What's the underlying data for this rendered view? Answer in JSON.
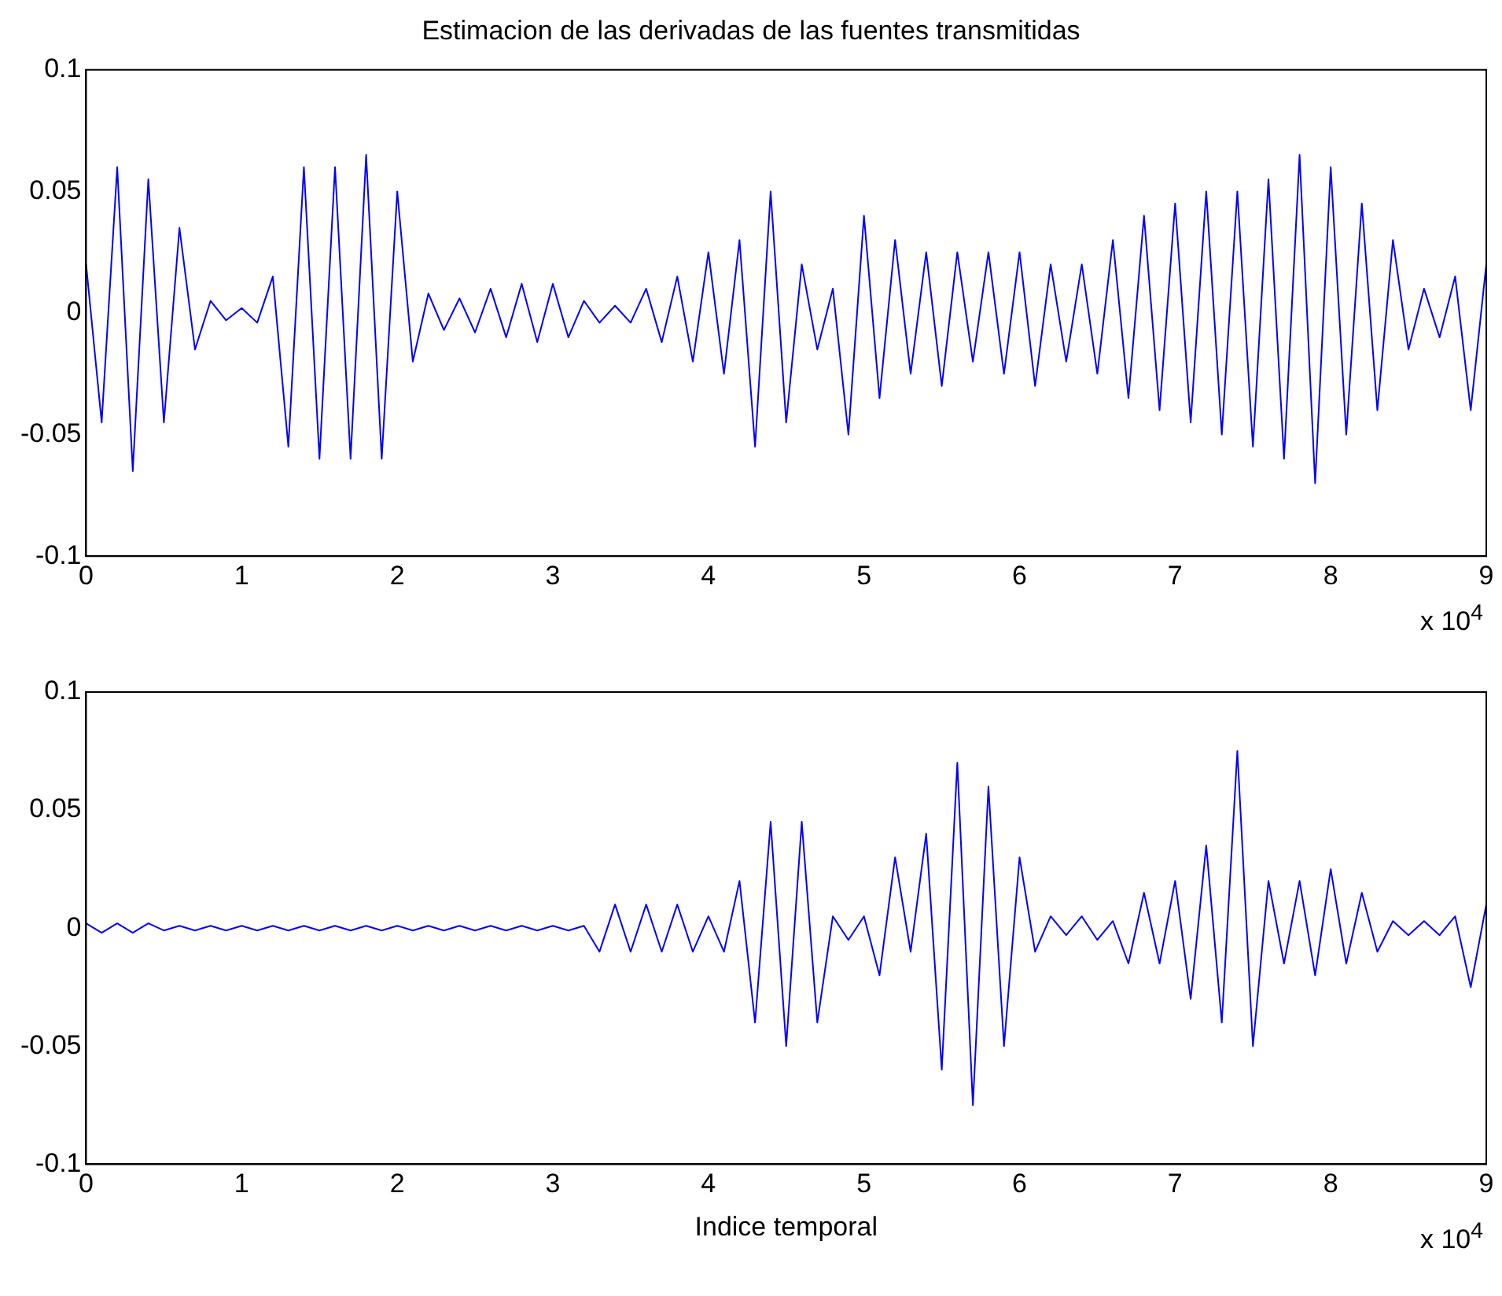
{
  "chart_data": [
    {
      "type": "line",
      "title": "Estimacion de las derivadas de las fuentes transmitidas",
      "annotations": [
        "x 10$^{4}$"
      ],
      "x": [
        0,
        0.1,
        0.2,
        0.3,
        0.4,
        0.5,
        0.6,
        0.7,
        0.8,
        0.9,
        1,
        1.1,
        1.2,
        1.3,
        1.4,
        1.5,
        1.6,
        1.7,
        1.8,
        1.9,
        2,
        2.1,
        2.2,
        2.3,
        2.4,
        2.5,
        2.6,
        2.7,
        2.8,
        2.9,
        3,
        3.1,
        3.2,
        3.3,
        3.4,
        3.5,
        3.6,
        3.7,
        3.8,
        3.9,
        4,
        4.1,
        4.2,
        4.3,
        4.4,
        4.5,
        4.6,
        4.7,
        4.8,
        4.9,
        5,
        5.1,
        5.2,
        5.3,
        5.4,
        5.5,
        5.6,
        5.7,
        5.8,
        5.9,
        6,
        6.1,
        6.2,
        6.3,
        6.4,
        6.5,
        6.6,
        6.7,
        6.8,
        6.9,
        7,
        7.1,
        7.2,
        7.3,
        7.4,
        7.5,
        7.6,
        7.7,
        7.8,
        7.9,
        8,
        8.1,
        8.2,
        8.3,
        8.4,
        8.5,
        8.6,
        8.7,
        8.8,
        8.9,
        9
      ],
      "series": [
        {
          "color": "#0000ff",
          "values": [
            0.02,
            -0.045,
            0.06,
            -0.065,
            0.055,
            -0.045,
            0.035,
            -0.015,
            0.005,
            -0.003,
            0.002,
            -0.004,
            0.015,
            -0.055,
            0.06,
            -0.06,
            0.06,
            -0.06,
            0.065,
            -0.06,
            0.05,
            -0.02,
            0.008,
            -0.007,
            0.006,
            -0.008,
            0.01,
            -0.01,
            0.012,
            -0.012,
            0.012,
            -0.01,
            0.005,
            -0.004,
            0.003,
            -0.004,
            0.01,
            -0.012,
            0.015,
            -0.02,
            0.025,
            -0.025,
            0.03,
            -0.055,
            0.05,
            -0.045,
            0.02,
            -0.015,
            0.01,
            -0.05,
            0.04,
            -0.035,
            0.03,
            -0.025,
            0.025,
            -0.03,
            0.025,
            -0.02,
            0.025,
            -0.025,
            0.025,
            -0.03,
            0.02,
            -0.02,
            0.02,
            -0.025,
            0.03,
            -0.035,
            0.04,
            -0.04,
            0.045,
            -0.045,
            0.05,
            -0.05,
            0.05,
            -0.055,
            0.055,
            -0.06,
            0.065,
            -0.07,
            0.06,
            -0.05,
            0.045,
            -0.04,
            0.03,
            -0.015,
            0.01,
            -0.01,
            0.015,
            -0.04,
            0.02
          ]
        }
      ],
      "xlim": [
        0,
        9
      ],
      "xticks": [
        0,
        1,
        2,
        3,
        4,
        5,
        6,
        7,
        8,
        9
      ],
      "ylim": [
        -0.1,
        0.1
      ],
      "yticks": [
        -0.1,
        -0.05,
        0,
        0.05,
        0.1
      ],
      "grid": false,
      "legend": false,
      "marker": "none"
    },
    {
      "type": "line",
      "xlabel": "Indice temporal",
      "annotations": [
        "x 10$^{4}$"
      ],
      "x": [
        0,
        0.1,
        0.2,
        0.3,
        0.4,
        0.5,
        0.6,
        0.7,
        0.8,
        0.9,
        1,
        1.1,
        1.2,
        1.3,
        1.4,
        1.5,
        1.6,
        1.7,
        1.8,
        1.9,
        2,
        2.1,
        2.2,
        2.3,
        2.4,
        2.5,
        2.6,
        2.7,
        2.8,
        2.9,
        3,
        3.1,
        3.2,
        3.3,
        3.4,
        3.5,
        3.6,
        3.7,
        3.8,
        3.9,
        4,
        4.1,
        4.2,
        4.3,
        4.4,
        4.5,
        4.6,
        4.7,
        4.8,
        4.9,
        5,
        5.1,
        5.2,
        5.3,
        5.4,
        5.5,
        5.6,
        5.7,
        5.8,
        5.9,
        6,
        6.1,
        6.2,
        6.3,
        6.4,
        6.5,
        6.6,
        6.7,
        6.8,
        6.9,
        7,
        7.1,
        7.2,
        7.3,
        7.4,
        7.5,
        7.6,
        7.7,
        7.8,
        7.9,
        8,
        8.1,
        8.2,
        8.3,
        8.4,
        8.5,
        8.6,
        8.7,
        8.8,
        8.9,
        9
      ],
      "series": [
        {
          "color": "#0000ff",
          "values": [
            0.002,
            -0.002,
            0.002,
            -0.002,
            0.002,
            -0.001,
            0.001,
            -0.001,
            0.001,
            -0.001,
            0.001,
            -0.001,
            0.001,
            -0.001,
            0.001,
            -0.001,
            0.001,
            -0.001,
            0.001,
            -0.001,
            0.001,
            -0.001,
            0.001,
            -0.001,
            0.001,
            -0.001,
            0.001,
            -0.001,
            0.001,
            -0.001,
            0.001,
            -0.001,
            0.001,
            -0.01,
            0.01,
            -0.01,
            0.01,
            -0.01,
            0.01,
            -0.01,
            0.005,
            -0.01,
            0.02,
            -0.04,
            0.045,
            -0.05,
            0.045,
            -0.04,
            0.005,
            -0.005,
            0.005,
            -0.02,
            0.03,
            -0.01,
            0.04,
            -0.06,
            0.07,
            -0.075,
            0.06,
            -0.05,
            0.03,
            -0.01,
            0.005,
            -0.003,
            0.005,
            -0.005,
            0.003,
            -0.015,
            0.015,
            -0.015,
            0.02,
            -0.03,
            0.035,
            -0.04,
            0.075,
            -0.05,
            0.02,
            -0.015,
            0.02,
            -0.02,
            0.025,
            -0.015,
            0.015,
            -0.01,
            0.003,
            -0.003,
            0.003,
            -0.003,
            0.005,
            -0.025,
            0.01
          ]
        }
      ],
      "xlim": [
        0,
        9
      ],
      "xticks": [
        0,
        1,
        2,
        3,
        4,
        5,
        6,
        7,
        8,
        9
      ],
      "ylim": [
        -0.1,
        0.1
      ],
      "yticks": [
        -0.1,
        -0.05,
        0,
        0.05,
        0.1
      ],
      "grid": false,
      "legend": false,
      "marker": "none"
    }
  ]
}
